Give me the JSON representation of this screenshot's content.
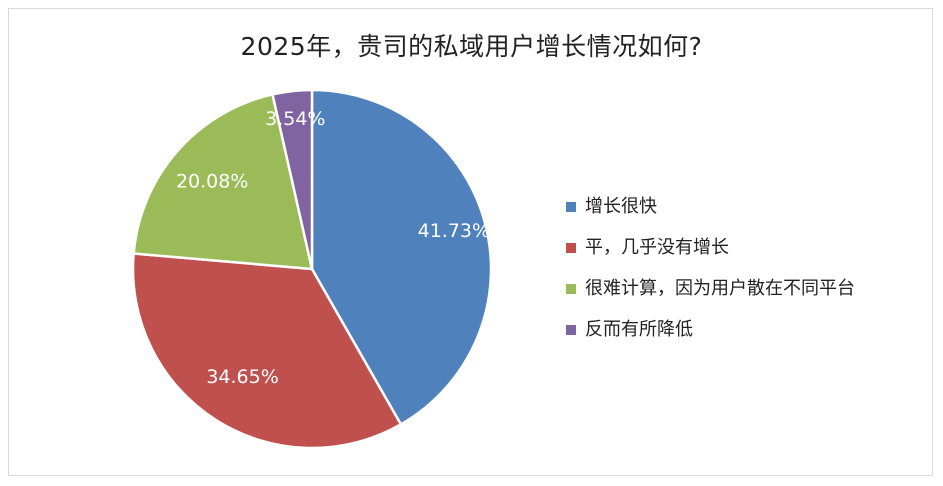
{
  "chart_data": {
    "type": "pie",
    "title": "2025年，贵司的私域用户增长情况如何?",
    "categories": [
      "增长很快",
      "平，几乎没有增长",
      "很难计算，因为用户散在不同平台",
      "反而有所降低"
    ],
    "values": [
      41.73,
      34.65,
      20.08,
      3.54
    ],
    "value_labels": [
      "41.73%",
      "34.65%",
      "20.08%",
      "3.54%"
    ],
    "colors": [
      "#4f81bd",
      "#c0504d",
      "#9bbb59",
      "#8064a2"
    ],
    "legend_position": "right",
    "start_angle": "12 o'clock, clockwise"
  }
}
